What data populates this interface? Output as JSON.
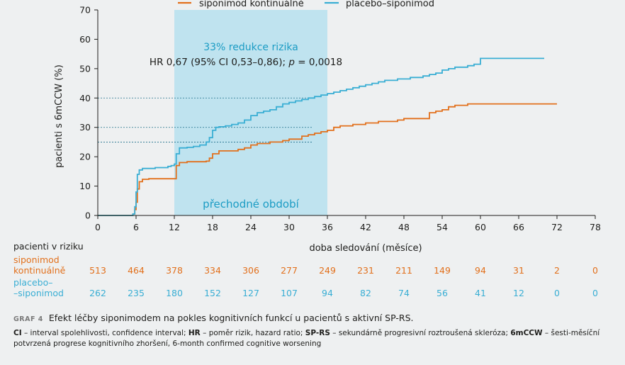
{
  "chart_data": {
    "type": "line",
    "subtype": "kaplan-meier step",
    "title": "",
    "xlabel": "doba sledování (měsíce)",
    "ylabel": "pacienti s 6mCCW (%)",
    "xlim": [
      0,
      78
    ],
    "ylim": [
      0,
      70
    ],
    "x_ticks": [
      0,
      6,
      12,
      18,
      24,
      30,
      36,
      42,
      48,
      54,
      60,
      66,
      72,
      78
    ],
    "y_ticks": [
      0,
      10,
      20,
      30,
      40,
      50,
      60,
      70
    ],
    "legend_position": "top-center",
    "series": [
      {
        "name": "siponimod kontinuálně",
        "color": "#e2701c",
        "points": [
          [
            0,
            0
          ],
          [
            5.5,
            0.5
          ],
          [
            5.8,
            2
          ],
          [
            6,
            4.5
          ],
          [
            6.2,
            9
          ],
          [
            6.5,
            11.5
          ],
          [
            7,
            12.3
          ],
          [
            8,
            12.5
          ],
          [
            11,
            12.5
          ],
          [
            12,
            12.5
          ],
          [
            12.3,
            17
          ],
          [
            12.8,
            18
          ],
          [
            14,
            18.3
          ],
          [
            17,
            18.5
          ],
          [
            17.5,
            19.5
          ],
          [
            18,
            21
          ],
          [
            19,
            22
          ],
          [
            22,
            22.5
          ],
          [
            23,
            23
          ],
          [
            24,
            24
          ],
          [
            25,
            24.5
          ],
          [
            27,
            25
          ],
          [
            29,
            25.5
          ],
          [
            30,
            26
          ],
          [
            32,
            27
          ],
          [
            33,
            27.5
          ],
          [
            34,
            28
          ],
          [
            35,
            28.5
          ],
          [
            36,
            29
          ],
          [
            37,
            30
          ],
          [
            38,
            30.5
          ],
          [
            40,
            31
          ],
          [
            42,
            31.5
          ],
          [
            44,
            32
          ],
          [
            47,
            32.5
          ],
          [
            48,
            33
          ],
          [
            51,
            33
          ],
          [
            52,
            35
          ],
          [
            53,
            35.5
          ],
          [
            54,
            36
          ],
          [
            55,
            37
          ],
          [
            56,
            37.5
          ],
          [
            58,
            38
          ],
          [
            60,
            38
          ],
          [
            70,
            38
          ],
          [
            72,
            38
          ]
        ]
      },
      {
        "name": "placebo–siponimod",
        "color": "#39aed4",
        "points": [
          [
            0,
            0
          ],
          [
            5.5,
            0.5
          ],
          [
            5.8,
            3
          ],
          [
            6,
            8
          ],
          [
            6.2,
            14
          ],
          [
            6.5,
            15.5
          ],
          [
            7,
            16
          ],
          [
            9,
            16.3
          ],
          [
            11,
            16.7
          ],
          [
            11.5,
            17
          ],
          [
            12,
            17.5
          ],
          [
            12.3,
            21
          ],
          [
            12.8,
            23
          ],
          [
            14,
            23.2
          ],
          [
            15,
            23.5
          ],
          [
            16,
            24
          ],
          [
            17,
            25
          ],
          [
            17.5,
            26.5
          ],
          [
            18,
            29
          ],
          [
            18.5,
            30
          ],
          [
            19,
            30.2
          ],
          [
            20,
            30.5
          ],
          [
            21,
            31
          ],
          [
            22,
            31.5
          ],
          [
            23,
            32.5
          ],
          [
            24,
            34
          ],
          [
            25,
            35
          ],
          [
            26,
            35.5
          ],
          [
            27,
            36
          ],
          [
            28,
            37
          ],
          [
            29,
            38
          ],
          [
            30,
            38.5
          ],
          [
            31,
            39
          ],
          [
            32,
            39.5
          ],
          [
            33,
            40
          ],
          [
            34,
            40.5
          ],
          [
            35,
            41
          ],
          [
            36,
            41.5
          ],
          [
            37,
            42
          ],
          [
            38,
            42.5
          ],
          [
            39,
            43
          ],
          [
            40,
            43.5
          ],
          [
            41,
            44
          ],
          [
            42,
            44.5
          ],
          [
            43,
            45
          ],
          [
            44,
            45.5
          ],
          [
            45,
            46
          ],
          [
            47,
            46.5
          ],
          [
            49,
            47
          ],
          [
            51,
            47.5
          ],
          [
            52,
            48
          ],
          [
            53,
            48.5
          ],
          [
            54,
            49.5
          ],
          [
            55,
            50
          ],
          [
            56,
            50.5
          ],
          [
            58,
            51
          ],
          [
            59,
            51.5
          ],
          [
            60,
            53.5
          ],
          [
            65,
            53.5
          ],
          [
            70,
            53.5
          ]
        ]
      }
    ],
    "highlight_band": {
      "x_range": [
        12,
        36
      ],
      "color": "#bfe3ef"
    },
    "reference_lines_y": [
      25,
      30,
      40
    ],
    "annotations": {
      "effect": "33% redukce rizika",
      "hr_prefix": "HR 0,67 (95% CI 0,53–0,86); ",
      "p_symbol": "p",
      "p_value": " = 0,0018",
      "period": "přechodné období"
    },
    "risk_table": {
      "header": "pacienti v riziku",
      "months": [
        0,
        6,
        12,
        18,
        24,
        30,
        36,
        42,
        48,
        54,
        60,
        66,
        72,
        78
      ],
      "rows": [
        {
          "label_lines": [
            "siponimod",
            "kontinuálně"
          ],
          "color": "#e2701c",
          "values": [
            "513",
            "464",
            "378",
            "334",
            "306",
            "277",
            "249",
            "231",
            "211",
            "149",
            "94",
            "31",
            "2",
            "0"
          ]
        },
        {
          "label_lines": [
            "placebo–",
            "–siponimod"
          ],
          "color": "#39aed4",
          "values": [
            "262",
            "235",
            "180",
            "152",
            "127",
            "107",
            "94",
            "82",
            "74",
            "56",
            "41",
            "12",
            "0",
            "0"
          ]
        }
      ]
    }
  },
  "caption": {
    "graf_label": "GRAF 4",
    "title": "Efekt léčby siponimodem na pokles kognitivních funkcí u pacientů s aktivní SP-RS.",
    "notes": [
      {
        "abbr": "CI",
        "text": " – interval spolehlivosti, confidence interval; "
      },
      {
        "abbr": "HR",
        "text": " – poměr rizik, hazard ratio; "
      },
      {
        "abbr": "SP-RS",
        "text": " – sekundárně progresivní roztroušená skleróza; "
      },
      {
        "abbr": "6mCCW",
        "text": " – šesti-měsíční potvrzená progrese kognitivního zhoršení, 6-month confirmed cognitive worsening"
      }
    ]
  }
}
